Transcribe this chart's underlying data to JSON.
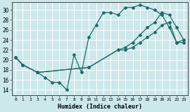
{
  "bg_color": "#cce8eb",
  "grid_color": "#b0d4d8",
  "line_color": "#1e6b6b",
  "xlabel": "Humidex (Indice chaleur)",
  "xlim": [
    -0.5,
    23.5
  ],
  "ylim": [
    13.0,
    31.5
  ],
  "yticks": [
    14,
    16,
    18,
    20,
    22,
    24,
    26,
    28,
    30
  ],
  "xticks": [
    0,
    1,
    2,
    3,
    4,
    5,
    6,
    7,
    8,
    9,
    10,
    11,
    12,
    13,
    14,
    15,
    16,
    17,
    18,
    19,
    20,
    21,
    22,
    23
  ],
  "line1_x": [
    0,
    1,
    3,
    4,
    5,
    6,
    7,
    8,
    9,
    10,
    11,
    12,
    13,
    14,
    15,
    16,
    17,
    18,
    19,
    20,
    21,
    22,
    23
  ],
  "line1_y": [
    20.5,
    19.0,
    17.5,
    16.5,
    15.5,
    15.5,
    14.0,
    21.0,
    17.5,
    24.5,
    27.0,
    29.5,
    29.5,
    29.0,
    30.5,
    30.5,
    31.0,
    30.5,
    30.0,
    29.0,
    26.5,
    23.5,
    23.5
  ],
  "line2_x": [
    0,
    1,
    3,
    10,
    14,
    15,
    16,
    17,
    18,
    19,
    20,
    21,
    22,
    23
  ],
  "line2_y": [
    20.5,
    19.0,
    17.5,
    18.5,
    22.0,
    22.5,
    23.5,
    25.0,
    26.5,
    27.5,
    29.5,
    29.0,
    26.5,
    24.0
  ],
  "line3_x": [
    0,
    1,
    3,
    10,
    14,
    15,
    16,
    17,
    18,
    19,
    20,
    21,
    22,
    23
  ],
  "line3_y": [
    20.5,
    19.0,
    17.5,
    18.5,
    22.0,
    22.0,
    22.5,
    23.5,
    24.5,
    25.5,
    27.0,
    27.5,
    23.5,
    24.0
  ]
}
